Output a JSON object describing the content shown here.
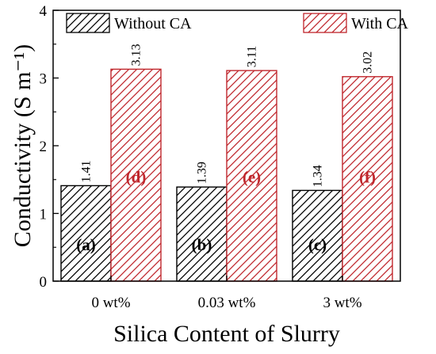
{
  "chart_data": {
    "type": "bar",
    "categories": [
      "0 wt%",
      "0.03 wt%",
      "3 wt%"
    ],
    "series": [
      {
        "name": "Without CA",
        "values": [
          1.41,
          1.39,
          1.34
        ],
        "value_labels": [
          "1.41",
          "1.39",
          "1.34"
        ],
        "panel_labels": [
          "(a)",
          "(b)",
          "(c)"
        ],
        "color": "#000000",
        "pattern": "diagonal-hatch"
      },
      {
        "name": "With CA",
        "values": [
          3.13,
          3.11,
          3.02
        ],
        "value_labels": [
          "3.13",
          "3.11",
          "3.02"
        ],
        "panel_labels": [
          "(d)",
          "(e)",
          "(f)"
        ],
        "color": "#c0272d",
        "pattern": "diagonal-hatch"
      }
    ],
    "xlabel": "Silica Content of Slurry",
    "ylabel": "Conductivity (S m⁻¹)",
    "ylim": [
      0,
      4
    ],
    "yticks": [
      "0",
      "1",
      "2",
      "3",
      "4"
    ],
    "legend_position": "top",
    "grid": false
  }
}
